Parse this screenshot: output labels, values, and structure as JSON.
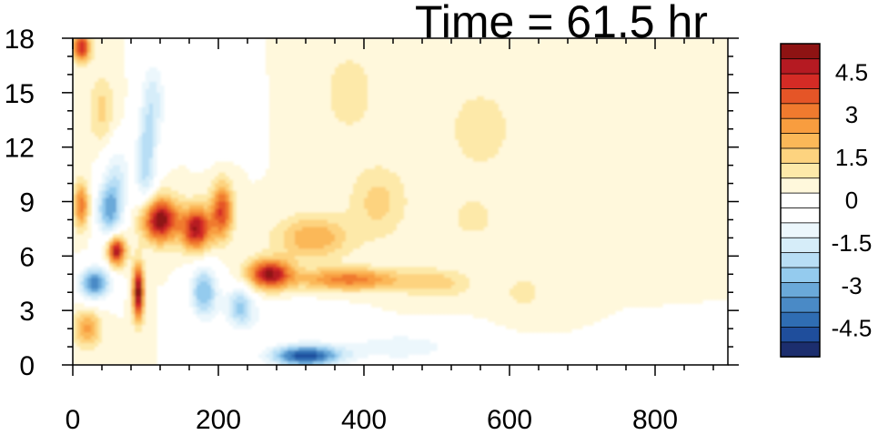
{
  "chart_data": {
    "type": "heatmap",
    "title": "Time = 61.5 hr",
    "xlabel": "",
    "ylabel": "",
    "xlim": [
      0,
      900
    ],
    "ylim": [
      0,
      18
    ],
    "x_ticks": [
      "0",
      "200",
      "400",
      "600",
      "800"
    ],
    "x_tick_values": [
      0,
      200,
      400,
      600,
      800
    ],
    "y_ticks": [
      "0",
      "3",
      "6",
      "9",
      "12",
      "15",
      "18"
    ],
    "y_tick_values": [
      0,
      3,
      6,
      9,
      12,
      15,
      18
    ],
    "grid": false,
    "colorbar": {
      "placement": "right",
      "levels": [
        -5.5,
        -5,
        -4.5,
        -4,
        -3.5,
        -3,
        -2.5,
        -2,
        -1.5,
        -1,
        -0.5,
        0,
        0.5,
        1,
        1.5,
        2,
        2.5,
        3,
        3.5,
        4,
        4.5,
        5,
        5.5
      ],
      "labels": [
        "4.5",
        "3",
        "1.5",
        "0",
        "-1.5",
        "-3",
        "-4.5"
      ],
      "label_values": [
        4.5,
        3,
        1.5,
        0,
        -1.5,
        -3,
        -4.5
      ],
      "colors": [
        "#1c2e6e",
        "#1f4e9c",
        "#2f6db3",
        "#4a8ac6",
        "#6aa9d9",
        "#94cbee",
        "#b8def5",
        "#d6edf9",
        "#ecf7fc",
        "#ffffff",
        "#ffffff",
        "#fff8dc",
        "#fde9a9",
        "#fdd37f",
        "#fbb858",
        "#f89d3f",
        "#f07a2e",
        "#e55527",
        "#d42b25",
        "#b51a22",
        "#8e1313"
      ]
    },
    "features": [
      {
        "x": 12,
        "y": 17.5,
        "value": 4.0,
        "sx": 12,
        "sy": 0.8
      },
      {
        "x": 40,
        "y": 14.0,
        "value": 1.2,
        "sx": 18,
        "sy": 2.0
      },
      {
        "x": 110,
        "y": 14.5,
        "value": -1.8,
        "sx": 18,
        "sy": 2.5
      },
      {
        "x": 100,
        "y": 11.0,
        "value": -2.2,
        "sx": 14,
        "sy": 2.5
      },
      {
        "x": 60,
        "y": 10.5,
        "value": -1.5,
        "sx": 20,
        "sy": 2.0
      },
      {
        "x": 200,
        "y": 14.0,
        "value": -1.0,
        "sx": 25,
        "sy": 2.0
      },
      {
        "x": 12,
        "y": 8.8,
        "value": 3.0,
        "sx": 10,
        "sy": 1.2
      },
      {
        "x": 50,
        "y": 8.5,
        "value": -3.0,
        "sx": 18,
        "sy": 1.5
      },
      {
        "x": 120,
        "y": 8.0,
        "value": 5.0,
        "sx": 25,
        "sy": 1.2
      },
      {
        "x": 170,
        "y": 7.5,
        "value": 4.5,
        "sx": 20,
        "sy": 1.2
      },
      {
        "x": 205,
        "y": 8.5,
        "value": 3.5,
        "sx": 15,
        "sy": 1.5
      },
      {
        "x": 60,
        "y": 6.3,
        "value": 4.8,
        "sx": 12,
        "sy": 0.8
      },
      {
        "x": 90,
        "y": 4.0,
        "value": 5.0,
        "sx": 8,
        "sy": 1.5
      },
      {
        "x": 30,
        "y": 4.5,
        "value": -3.8,
        "sx": 22,
        "sy": 0.9
      },
      {
        "x": 20,
        "y": 2.0,
        "value": 2.2,
        "sx": 18,
        "sy": 1.0
      },
      {
        "x": 180,
        "y": 4.0,
        "value": -3.0,
        "sx": 20,
        "sy": 1.5
      },
      {
        "x": 230,
        "y": 3.2,
        "value": -2.5,
        "sx": 20,
        "sy": 1.2
      },
      {
        "x": 270,
        "y": 5.0,
        "value": 4.5,
        "sx": 30,
        "sy": 0.8
      },
      {
        "x": 380,
        "y": 4.7,
        "value": 2.8,
        "sx": 70,
        "sy": 0.6
      },
      {
        "x": 500,
        "y": 4.5,
        "value": 1.2,
        "sx": 50,
        "sy": 0.8
      },
      {
        "x": 320,
        "y": 0.5,
        "value": -4.8,
        "sx": 50,
        "sy": 0.6
      },
      {
        "x": 450,
        "y": 1.0,
        "value": -1.5,
        "sx": 80,
        "sy": 0.8
      },
      {
        "x": 300,
        "y": 2.5,
        "value": -1.0,
        "sx": 60,
        "sy": 0.9
      },
      {
        "x": 330,
        "y": 7.0,
        "value": 2.0,
        "sx": 50,
        "sy": 1.2
      },
      {
        "x": 420,
        "y": 9.0,
        "value": 1.2,
        "sx": 40,
        "sy": 2.0
      },
      {
        "x": 380,
        "y": 15.0,
        "value": 0.8,
        "sx": 40,
        "sy": 2.5
      },
      {
        "x": 560,
        "y": 13.0,
        "value": 0.7,
        "sx": 60,
        "sy": 3.0
      },
      {
        "x": 620,
        "y": 4.0,
        "value": 0.7,
        "sx": 30,
        "sy": 1.0
      },
      {
        "x": 550,
        "y": 8.0,
        "value": 0.6,
        "sx": 40,
        "sy": 1.5
      }
    ]
  }
}
